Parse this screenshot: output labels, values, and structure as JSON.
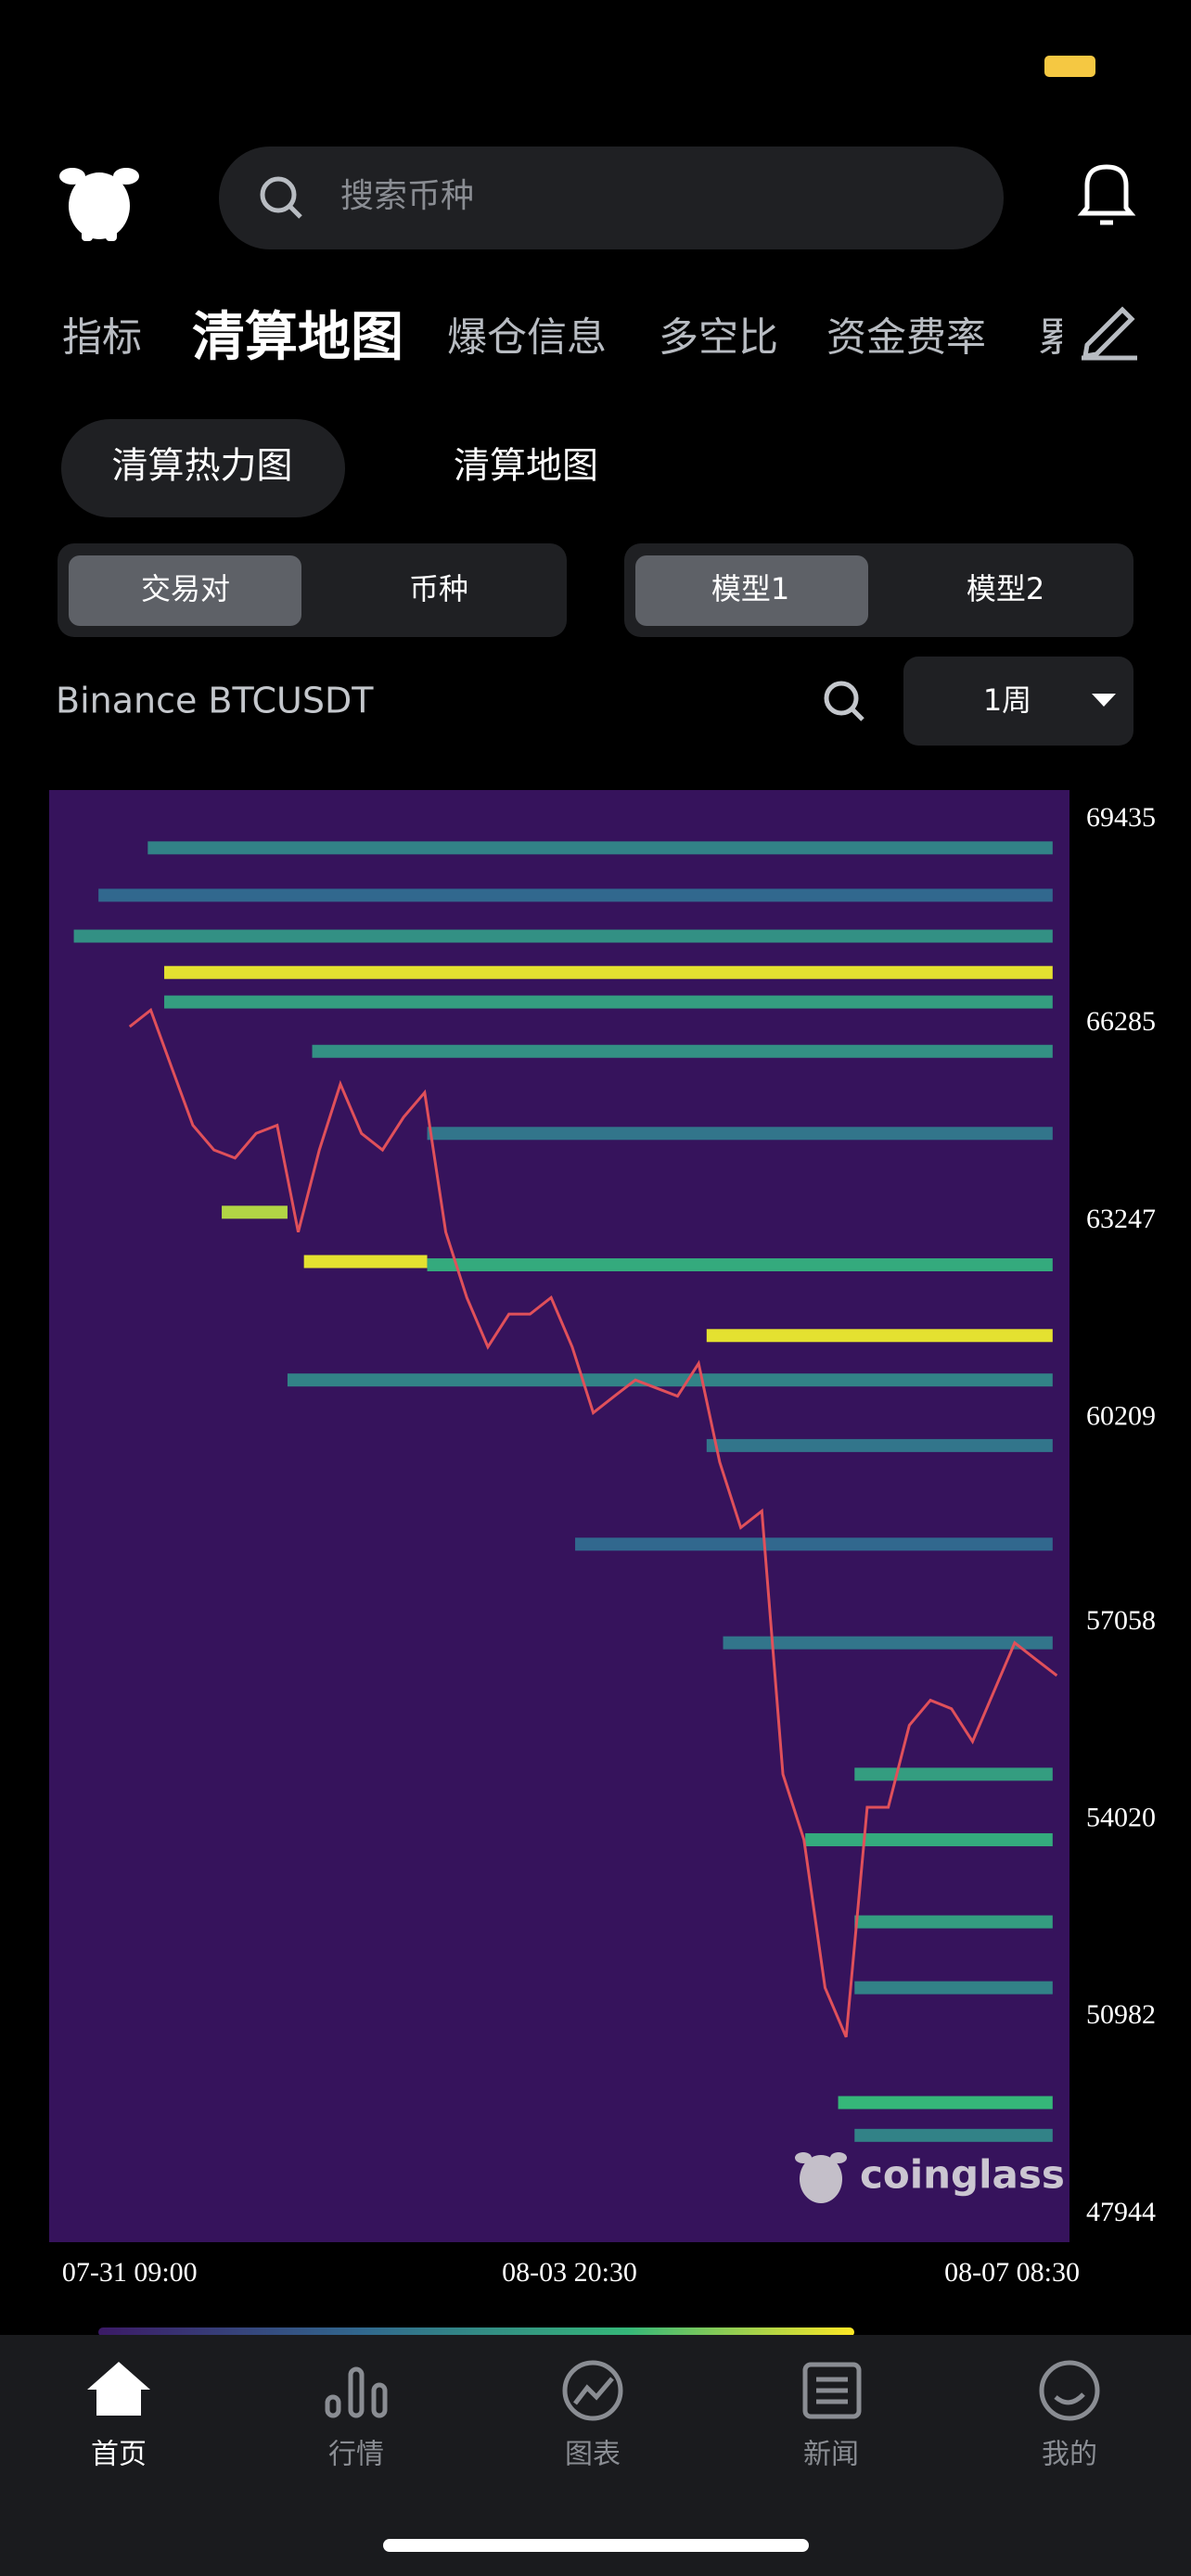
{
  "header": {
    "search_placeholder": "搜索币种"
  },
  "tabs": [
    "指标",
    "清算地图",
    "爆仓信息",
    "多空比",
    "资金费率",
    "累"
  ],
  "sub_tabs": [
    "清算热力图",
    "清算地图"
  ],
  "segment_left": [
    "交易对",
    "币种"
  ],
  "segment_right": [
    "模型1",
    "模型2"
  ],
  "pair": "Binance BTCUSDT",
  "period": "1周",
  "watermark": "coinglass",
  "nav": [
    "首页",
    "行情",
    "图表",
    "新闻",
    "我的"
  ],
  "chart_data": {
    "type": "heatmap",
    "xlim": [
      -3.82,
      44.6
    ],
    "xticks": [
      {
        "value": 0,
        "label": "07-31 09:00"
      },
      {
        "value": 20.875,
        "label": "08-03 20:30"
      },
      {
        "value": 41.875,
        "label": "08-07 08:30"
      }
    ],
    "ylim": [
      47514,
      69891
    ],
    "yticks": [
      69435,
      66285,
      63247,
      60209,
      57058,
      54020,
      50982,
      47944
    ],
    "background": "#36135c",
    "series": [
      {
        "color": "#e0505a",
        "x": [
          0,
          1,
          2,
          3,
          4,
          5,
          6,
          7,
          8,
          9,
          10,
          11,
          12,
          13,
          14,
          15,
          16,
          17,
          18,
          19,
          20,
          21,
          22,
          23,
          24,
          25,
          26,
          27,
          28,
          29,
          30,
          31,
          32,
          33,
          34,
          35,
          36,
          37,
          38,
          39,
          40,
          41,
          42,
          43,
          44
        ],
        "values": [
          66245,
          66500,
          65610,
          64725,
          64345,
          64220,
          64600,
          64725,
          63080,
          64345,
          65360,
          64600,
          64345,
          64850,
          65230,
          63080,
          62070,
          61310,
          61815,
          61815,
          62070,
          61310,
          60295,
          60550,
          60800,
          60675,
          60550,
          61055,
          59535,
          58525,
          58780,
          54725,
          53715,
          51435,
          50675,
          54215,
          54215,
          55480,
          55865,
          55735,
          55230,
          55990,
          56750,
          56495,
          56245
        ]
      }
    ],
    "levels": [
      {
        "price": 69000,
        "start": 0.86,
        "end": 43.8,
        "intensity": 0.4
      },
      {
        "price": 68270,
        "start": -1.48,
        "end": 43.8,
        "intensity": 0.3
      },
      {
        "price": 67640,
        "start": -2.65,
        "end": 43.8,
        "intensity": 0.45
      },
      {
        "price": 67080,
        "start": 1.64,
        "end": 43.8,
        "intensity": 0.95
      },
      {
        "price": 66625,
        "start": 1.64,
        "end": 43.8,
        "intensity": 0.5
      },
      {
        "price": 65865,
        "start": 8.66,
        "end": 43.8,
        "intensity": 0.45
      },
      {
        "price": 64600,
        "start": 14.12,
        "end": 43.8,
        "intensity": 0.35
      },
      {
        "price": 63385,
        "start": 4.37,
        "end": 7.49,
        "intensity": 0.85
      },
      {
        "price": 62625,
        "start": 8.27,
        "end": 14.12,
        "intensity": 0.95
      },
      {
        "price": 62575,
        "start": 14.12,
        "end": 43.8,
        "intensity": 0.55
      },
      {
        "price": 61485,
        "start": 27.38,
        "end": 43.8,
        "intensity": 0.95
      },
      {
        "price": 60800,
        "start": 7.49,
        "end": 43.8,
        "intensity": 0.4
      },
      {
        "price": 59790,
        "start": 27.38,
        "end": 43.8,
        "intensity": 0.35
      },
      {
        "price": 58270,
        "start": 21.14,
        "end": 43.8,
        "intensity": 0.3
      },
      {
        "price": 56750,
        "start": 28.16,
        "end": 43.8,
        "intensity": 0.35
      },
      {
        "price": 54725,
        "start": 34.4,
        "end": 43.8,
        "intensity": 0.5
      },
      {
        "price": 53715,
        "start": 32.06,
        "end": 43.8,
        "intensity": 0.55
      },
      {
        "price": 52450,
        "start": 34.4,
        "end": 43.8,
        "intensity": 0.5
      },
      {
        "price": 51435,
        "start": 34.4,
        "end": 43.8,
        "intensity": 0.4
      },
      {
        "price": 49665,
        "start": 33.62,
        "end": 43.8,
        "intensity": 0.6
      },
      {
        "price": 49160,
        "start": 34.4,
        "end": 43.8,
        "intensity": 0.4
      }
    ]
  }
}
